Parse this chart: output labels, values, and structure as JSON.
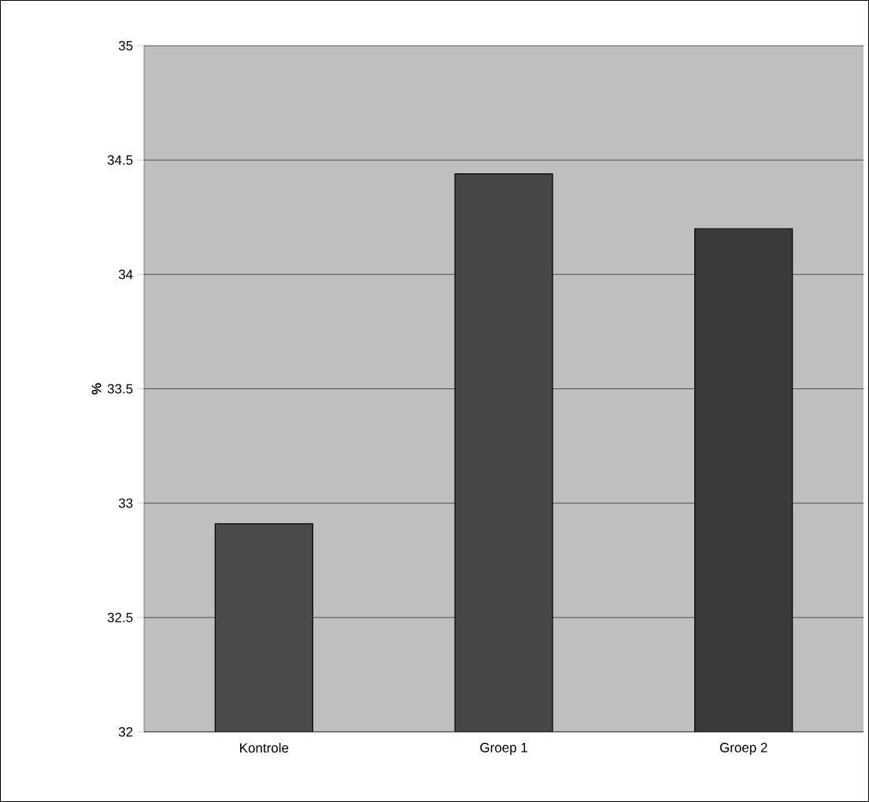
{
  "chart_data": {
    "type": "bar",
    "ylabel": "%",
    "categories": [
      "Kontrole",
      "Groep 1",
      "Groep 2"
    ],
    "values": [
      32.91,
      34.44,
      34.2
    ],
    "colors": [
      "#4a4a4a",
      "#474747",
      "#3a3a3a"
    ],
    "ylim": [
      32,
      35
    ],
    "yticks": [
      32,
      32.5,
      33,
      33.5,
      34,
      34.5,
      35
    ],
    "grid": "y"
  }
}
